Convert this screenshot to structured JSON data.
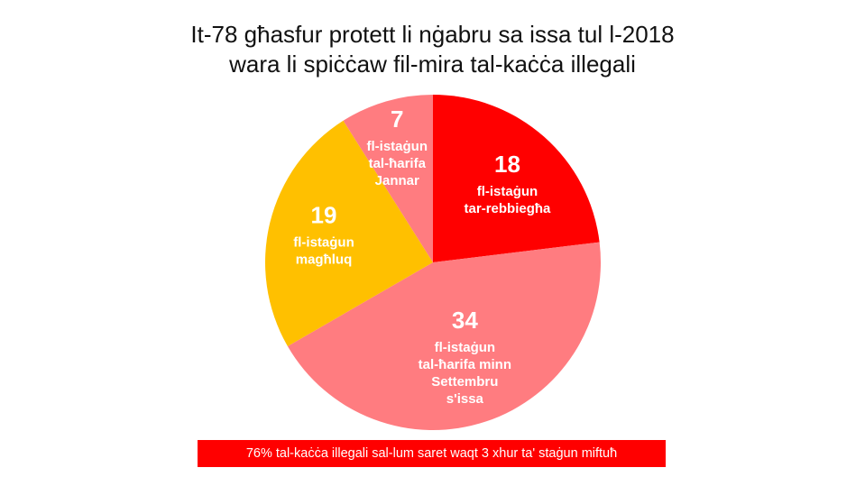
{
  "title": {
    "line1": "It-78 għasfur protett li nġabru sa issa tul l-2018",
    "line2": "wara li spiċċaw fil-mira tal-kaċċa illegali"
  },
  "chart_data": {
    "type": "pie",
    "total": 78,
    "start_angle_deg": 0,
    "direction": "clockwise",
    "slices": [
      {
        "value": 18,
        "label_lines": [
          "fl-istaġun",
          "tar-rebbiegħa"
        ],
        "color": "#FF0000"
      },
      {
        "value": 34,
        "label_lines": [
          "fl-istaġun",
          "tal-ħarifa minn",
          "Settembru",
          "s'issa"
        ],
        "color": "#FF7C80"
      },
      {
        "value": 19,
        "label_lines": [
          "fl-istaġun",
          "magħluq"
        ],
        "color": "#FFC000"
      },
      {
        "value": 7,
        "label_lines": [
          "fl-istaġun",
          "tal-ħarifa",
          "Jannar"
        ],
        "color": "#FF7C80"
      }
    ]
  },
  "footnote": {
    "text": "76% tal-kaċċa illegali sal-lum saret waqt 3 xhur ta' staġun miftuħ",
    "background": "#FF0000"
  }
}
